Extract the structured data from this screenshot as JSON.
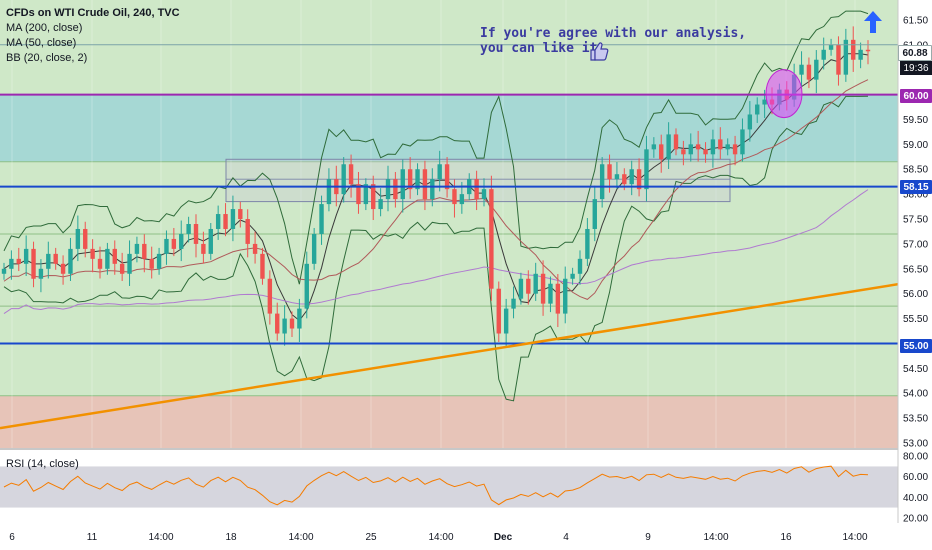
{
  "legend": {
    "title": "CFDs on WTI Crude Oil, 240, TVC",
    "ma200": "MA (200, close)",
    "ma50": "MA (50, close)",
    "bb": "BB (20, close, 2)"
  },
  "annotation": {
    "line1": "If you're agree with our analysis,",
    "line2": "you can like it"
  },
  "rsi": {
    "label": "RSI (14, close)"
  },
  "price_tags": {
    "last": "60.88",
    "countdown": "19:36",
    "line_60": "60.00",
    "line_5815": "58.15",
    "line_55": "55.00"
  },
  "colors": {
    "bg_green": "#cfe8c8",
    "bg_teal": "#a6d8d4",
    "bg_red": "#e7c4b8",
    "purple_line": "#9c27b0",
    "blue_line": "#1848cc",
    "orange_trend": "#f29100",
    "candle_up": "#26a69a",
    "candle_down": "#ef5350",
    "ellipse": "#e040fb",
    "up_arrow": "#2962ff"
  },
  "icons": [
    "thumbs-up-icon",
    "up-arrow-icon"
  ],
  "chart_data": {
    "type": "candlestick",
    "title": "CFDs on WTI Crude Oil, 240, TVC",
    "x_tick_labels": [
      "6",
      "11",
      "14:00",
      "18",
      "14:00",
      "25",
      "14:00",
      "Dec",
      "4",
      "9",
      "14:00",
      "16",
      "14:00"
    ],
    "y_tick_labels": [
      "61.50",
      "61.00",
      "60.50",
      "60.00",
      "59.50",
      "59.00",
      "58.50",
      "58.00",
      "57.50",
      "57.00",
      "56.50",
      "56.00",
      "55.50",
      "55.00",
      "54.50",
      "54.00",
      "53.50",
      "53.00"
    ],
    "ylim": [
      52.9,
      61.9
    ],
    "horizontal_levels": [
      60.0,
      58.15,
      55.0
    ],
    "trendline": {
      "from": [
        0,
        53.3
      ],
      "to": [
        932,
        56.3
      ]
    },
    "rsi_ticks": [
      "80.00",
      "60.00",
      "40.00",
      "20.00"
    ],
    "rsi_range": [
      20,
      80
    ],
    "rsi_band": [
      30,
      70
    ],
    "series_close": [
      56.5,
      56.7,
      56.6,
      56.9,
      56.3,
      56.5,
      56.8,
      56.6,
      56.4,
      56.9,
      57.3,
      56.9,
      56.7,
      56.5,
      56.9,
      56.6,
      56.4,
      56.8,
      57.0,
      56.7,
      56.5,
      56.8,
      57.1,
      56.9,
      57.2,
      57.4,
      57.0,
      56.8,
      57.3,
      57.6,
      57.3,
      57.7,
      57.5,
      57.0,
      56.8,
      56.3,
      55.6,
      55.2,
      55.5,
      55.3,
      55.7,
      56.6,
      57.2,
      57.8,
      58.3,
      58.0,
      58.6,
      58.2,
      57.8,
      58.2,
      57.7,
      57.9,
      58.3,
      57.9,
      58.5,
      58.1,
      58.5,
      57.9,
      58.3,
      58.6,
      58.1,
      57.8,
      58.0,
      58.3,
      57.9,
      58.1,
      56.1,
      55.2,
      55.7,
      55.9,
      56.3,
      56.0,
      56.4,
      55.8,
      56.2,
      55.6,
      56.3,
      56.4,
      56.7,
      57.3,
      57.9,
      58.6,
      58.3,
      58.4,
      58.2,
      58.5,
      58.1,
      58.9,
      59.0,
      58.7,
      59.2,
      58.9,
      58.8,
      59.0,
      58.9,
      58.8,
      59.1,
      58.9,
      59.0,
      58.8,
      59.3,
      59.6,
      59.8,
      59.9,
      59.8,
      60.1,
      59.9,
      60.4,
      60.6,
      60.3,
      60.7,
      60.9,
      61.0,
      60.4,
      61.1,
      60.7,
      60.9,
      60.88
    ]
  }
}
